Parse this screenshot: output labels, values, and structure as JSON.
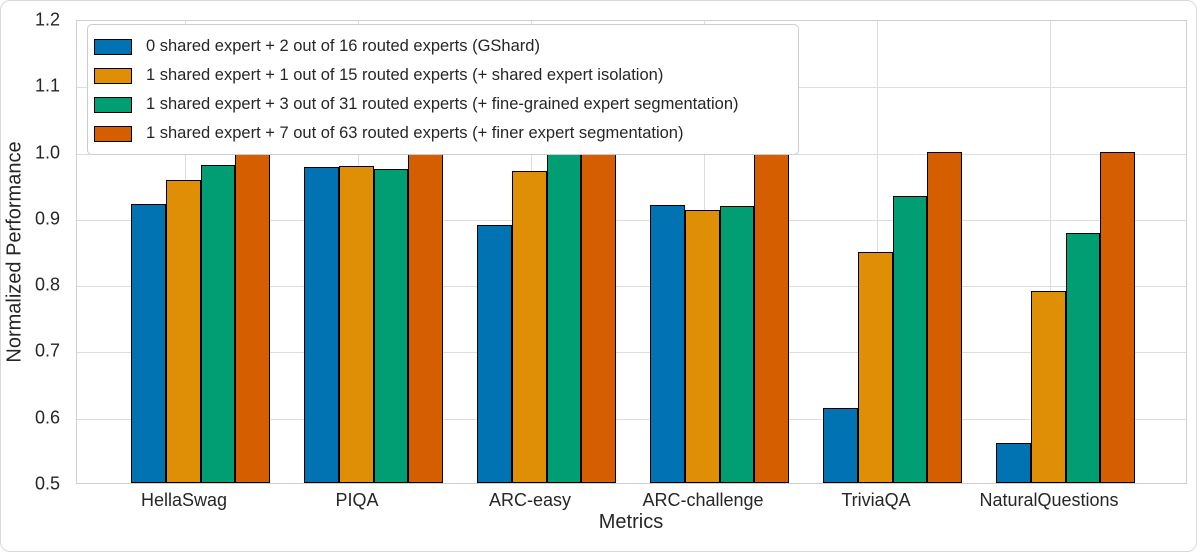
{
  "figure": {
    "background": "#ffffff",
    "border_color": "#d9d9d9"
  },
  "chart_data": {
    "type": "bar",
    "title": "",
    "xlabel": "Metrics",
    "ylabel": "Normalized Performance",
    "ylim": [
      0.5,
      1.2
    ],
    "yticks": [
      "0.5",
      "0.6",
      "0.7",
      "0.8",
      "0.9",
      "1.0",
      "1.1",
      "1.2"
    ],
    "grid": true,
    "legend_position": "upper left",
    "bar_edge_color": "#000000",
    "grid_color": "#dddddd",
    "categories": [
      "HellaSwag",
      "PIQA",
      "ARC-easy",
      "ARC-challenge",
      "TriviaQA",
      "NaturalQuestions"
    ],
    "series": [
      {
        "name": "0 shared expert + 2 out of 16 routed experts (GShard)",
        "color": "#0173B2",
        "values": [
          0.921,
          0.976,
          0.889,
          0.92,
          0.613,
          0.56
        ]
      },
      {
        "name": "1 shared expert + 1 out of 15 routed experts (+ shared expert isolation)",
        "color": "#DE8F05",
        "values": [
          0.957,
          0.978,
          0.971,
          0.912,
          0.849,
          0.789
        ]
      },
      {
        "name": "1 shared expert + 3 out of 31 routed experts (+ fine-grained expert segmentation)",
        "color": "#029E73",
        "values": [
          0.98,
          0.973,
          0.998,
          0.918,
          0.933,
          0.877
        ]
      },
      {
        "name": "1 shared expert + 7 out of 63 routed experts (+ finer expert segmentation)",
        "color": "#D55E00",
        "values": [
          1.0,
          1.0,
          1.0,
          1.0,
          1.0,
          1.0
        ]
      }
    ]
  }
}
